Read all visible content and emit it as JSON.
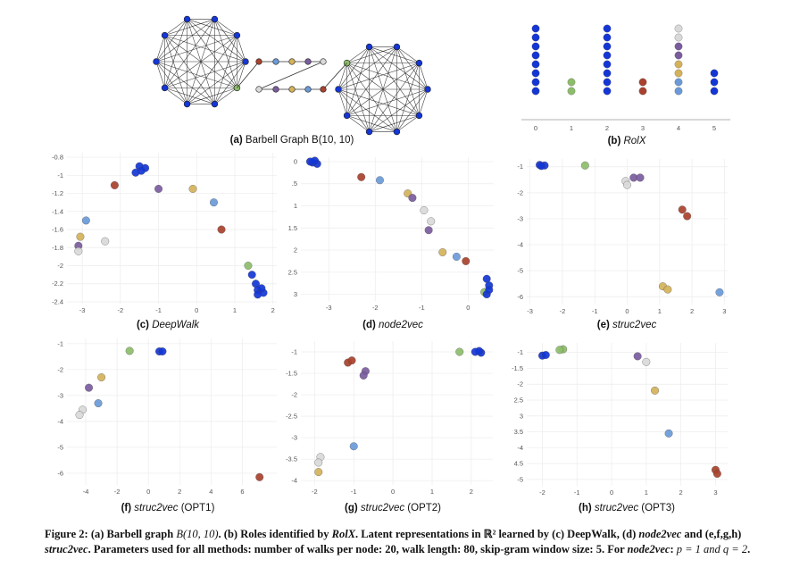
{
  "colors": {
    "blue": "#1436d6",
    "green": "#8dbd6a",
    "gray": "#d9d9d9",
    "purple": "#7a5c9e",
    "gold": "#d4b25a",
    "lightblue": "#6a9ad8",
    "red": "#a8412d"
  },
  "subcaptions": {
    "a": {
      "label": "(a)",
      "text": " Barbell Graph B(10, 10)"
    },
    "b": {
      "label": "(b)",
      "text": " RolX"
    },
    "c": {
      "label": "(c)",
      "text": " DeepWalk"
    },
    "d": {
      "label": "(d)",
      "text": " node2vec"
    },
    "e": {
      "label": "(e)",
      "text": " struc2vec"
    },
    "f": {
      "label": "(f)",
      "text": " struc2vec",
      "suffix": " (OPT1)"
    },
    "g": {
      "label": "(g)",
      "text": " struc2vec",
      "suffix": " (OPT2)"
    },
    "h": {
      "label": "(h)",
      "text": " struc2vec",
      "suffix": " (OPT3)"
    }
  },
  "caption": {
    "p1": "Figure 2: (a) Barbell graph ",
    "p2": "B(10, 10)",
    "p3": ". (b) Roles identified by ",
    "p4": "RolX",
    "p5": ". Latent representations in ℝ² learned by (c) DeepWalk, (d) ",
    "p6": "node2vec",
    "p7": " and (e,f,g,h) ",
    "p8": "struc2vec",
    "p9": ". Parameters used for all methods: number of walks per node: 20, walk length: 80, skip-gram window size: 5. For ",
    "p10": "node2vec",
    "p11": ": ",
    "p12": "p = 1 and q = 2",
    "p13": "."
  },
  "chart_data": [
    {
      "id": "b",
      "type": "scatter",
      "title": "RolX",
      "xticks": [
        "0",
        "1",
        "2",
        "3",
        "4",
        "5"
      ],
      "columns": [
        {
          "x": 0,
          "colors": [
            "blue",
            "blue",
            "blue",
            "blue",
            "blue",
            "blue",
            "blue",
            "blue"
          ]
        },
        {
          "x": 1,
          "colors": [
            "green",
            "green"
          ]
        },
        {
          "x": 2,
          "colors": [
            "blue",
            "blue",
            "blue",
            "blue",
            "blue",
            "blue",
            "blue",
            "blue"
          ]
        },
        {
          "x": 3,
          "colors": [
            "red",
            "red"
          ]
        },
        {
          "x": 4,
          "colors": [
            "lightblue",
            "lightblue",
            "gold",
            "gold",
            "purple",
            "purple",
            "gray",
            "gray"
          ]
        },
        {
          "x": 5,
          "colors": [
            "blue",
            "blue",
            "blue"
          ]
        }
      ]
    },
    {
      "id": "c",
      "type": "scatter",
      "title": "DeepWalk",
      "xlim": [
        -3.4,
        2.1
      ],
      "ylim": [
        -2.42,
        -0.75
      ],
      "xticks": [
        -3,
        -2,
        -1,
        0,
        1,
        2
      ],
      "yticks": [
        -0.8,
        -1,
        -1.2,
        -1.4,
        -1.6,
        -1.8,
        -2,
        -2.2,
        -2.4
      ],
      "ytick_labels": [
        "-0.8",
        "-1",
        "-1.2",
        "-1.4",
        "-1.6",
        "-1.8",
        "-2",
        "-2.2",
        "-2.4"
      ],
      "points": [
        [
          -1.5,
          -0.9,
          "blue"
        ],
        [
          -1.35,
          -0.92,
          "blue"
        ],
        [
          -1.6,
          -0.97,
          "blue"
        ],
        [
          -1.45,
          -0.95,
          "blue"
        ],
        [
          -2.15,
          -1.11,
          "red"
        ],
        [
          -1.0,
          -1.15,
          "purple"
        ],
        [
          -0.1,
          -1.15,
          "gold"
        ],
        [
          0.45,
          -1.3,
          "lightblue"
        ],
        [
          0.65,
          -1.6,
          "red"
        ],
        [
          -2.9,
          -1.5,
          "lightblue"
        ],
        [
          -2.4,
          -1.73,
          "gray"
        ],
        [
          -3.05,
          -1.68,
          "gold"
        ],
        [
          -3.1,
          -1.78,
          "purple"
        ],
        [
          -3.1,
          -1.84,
          "gray"
        ],
        [
          1.35,
          -2.0,
          "green"
        ],
        [
          1.45,
          -2.1,
          "blue"
        ],
        [
          1.55,
          -2.2,
          "blue"
        ],
        [
          1.6,
          -2.27,
          "blue"
        ],
        [
          1.75,
          -2.3,
          "blue"
        ],
        [
          1.6,
          -2.32,
          "blue"
        ],
        [
          1.7,
          -2.25,
          "blue"
        ]
      ]
    },
    {
      "id": "d",
      "type": "scatter",
      "title": "node2vec",
      "xlim": [
        -3.6,
        0.55
      ],
      "ylim": [
        -3.15,
        0.1
      ],
      "xticks": [
        -3,
        -2,
        -1,
        0
      ],
      "yticks": [
        0,
        -0.5,
        -1,
        -1.5,
        -2,
        -2.5,
        -3
      ],
      "ytick_labels": [
        "0",
        ".5",
        "1",
        "1.5",
        "2",
        "2.5",
        "3"
      ],
      "points": [
        [
          -3.35,
          -0.02,
          "blue"
        ],
        [
          -3.25,
          -0.05,
          "blue"
        ],
        [
          -3.4,
          0.0,
          "blue"
        ],
        [
          -3.3,
          0.02,
          "blue"
        ],
        [
          -2.3,
          -0.35,
          "red"
        ],
        [
          -1.9,
          -0.42,
          "lightblue"
        ],
        [
          -1.3,
          -0.72,
          "gold"
        ],
        [
          -1.2,
          -0.82,
          "purple"
        ],
        [
          -0.95,
          -1.1,
          "gray"
        ],
        [
          -0.8,
          -1.35,
          "gray"
        ],
        [
          -0.85,
          -1.55,
          "purple"
        ],
        [
          -0.55,
          -2.05,
          "gold"
        ],
        [
          -0.25,
          -2.15,
          "lightblue"
        ],
        [
          -0.05,
          -2.25,
          "red"
        ],
        [
          0.35,
          -2.95,
          "green"
        ],
        [
          0.4,
          -2.65,
          "blue"
        ],
        [
          0.45,
          -2.8,
          "blue"
        ],
        [
          0.4,
          -3.0,
          "blue"
        ],
        [
          0.45,
          -2.9,
          "blue"
        ]
      ]
    },
    {
      "id": "e",
      "type": "scatter",
      "title": "struc2vec",
      "xlim": [
        -3.1,
        3.1
      ],
      "ylim": [
        -6.3,
        -0.7
      ],
      "xticks": [
        -3,
        -2,
        -1,
        0,
        1,
        2,
        3
      ],
      "yticks": [
        -1,
        -2,
        -3,
        -4,
        -5,
        -6
      ],
      "ytick_labels": [
        "-1",
        "-2",
        "-3",
        "-4",
        "-5",
        "-6"
      ],
      "points": [
        [
          -2.7,
          -0.93,
          "blue"
        ],
        [
          -2.55,
          -0.95,
          "blue"
        ],
        [
          -2.65,
          -0.97,
          "blue"
        ],
        [
          -1.3,
          -0.95,
          "green"
        ],
        [
          0.2,
          -1.42,
          "purple"
        ],
        [
          0.4,
          -1.42,
          "purple"
        ],
        [
          -0.05,
          -1.55,
          "gray"
        ],
        [
          0.0,
          -1.7,
          "gray"
        ],
        [
          1.7,
          -2.65,
          "red"
        ],
        [
          1.85,
          -2.9,
          "red"
        ],
        [
          1.1,
          -5.6,
          "gold"
        ],
        [
          1.25,
          -5.72,
          "gold"
        ],
        [
          2.85,
          -5.83,
          "lightblue"
        ]
      ]
    },
    {
      "id": "f",
      "type": "scatter",
      "title": "struc2vec (OPT1)",
      "xlim": [
        -5.2,
        8.2
      ],
      "ylim": [
        -6.45,
        -0.8
      ],
      "xticks": [
        -4,
        -2,
        0,
        2,
        4,
        6
      ],
      "yticks": [
        -1,
        -2,
        -3,
        -4,
        -5,
        -6
      ],
      "ytick_labels": [
        "-1",
        "-2",
        "-3",
        "-4",
        "-5",
        "-6"
      ],
      "points": [
        [
          0.7,
          -1.3,
          "blue"
        ],
        [
          0.9,
          -1.3,
          "blue"
        ],
        [
          -1.2,
          -1.28,
          "green"
        ],
        [
          -3.0,
          -2.3,
          "gold"
        ],
        [
          -3.8,
          -2.7,
          "purple"
        ],
        [
          -3.2,
          -3.3,
          "lightblue"
        ],
        [
          -4.2,
          -3.55,
          "gray"
        ],
        [
          -4.4,
          -3.75,
          "gray"
        ],
        [
          7.1,
          -6.15,
          "red"
        ]
      ]
    },
    {
      "id": "g",
      "type": "scatter",
      "title": "struc2vec (OPT2)",
      "xlim": [
        -2.35,
        2.55
      ],
      "ylim": [
        -4.1,
        -0.75
      ],
      "xticks": [
        -2,
        -1,
        0,
        1,
        2
      ],
      "yticks": [
        -1,
        -1.5,
        -2,
        -2.5,
        -3,
        -3.5,
        -4
      ],
      "ytick_labels": [
        "-1",
        "-1.5",
        "-2",
        "-2.5",
        "-3",
        "-3.5",
        "-4"
      ],
      "points": [
        [
          2.1,
          -1.0,
          "blue"
        ],
        [
          2.25,
          -1.02,
          "blue"
        ],
        [
          2.2,
          -0.98,
          "blue"
        ],
        [
          1.7,
          -1.0,
          "green"
        ],
        [
          -1.15,
          -1.25,
          "red"
        ],
        [
          -1.05,
          -1.2,
          "red"
        ],
        [
          -0.7,
          -1.45,
          "purple"
        ],
        [
          -0.75,
          -1.55,
          "purple"
        ],
        [
          -1.0,
          -3.2,
          "lightblue"
        ],
        [
          -1.85,
          -3.45,
          "gray"
        ],
        [
          -1.9,
          -3.58,
          "gray"
        ],
        [
          -1.9,
          -3.8,
          "gold"
        ]
      ]
    },
    {
      "id": "h",
      "type": "scatter",
      "title": "struc2vec (OPT3)",
      "xlim": [
        -2.45,
        3.35
      ],
      "ylim": [
        -5.2,
        -0.7
      ],
      "xticks": [
        -2,
        -1,
        0,
        1,
        2,
        3
      ],
      "yticks": [
        -1,
        -1.5,
        -2,
        -2.5,
        -3,
        -3.5,
        -4,
        -4.5,
        -5
      ],
      "ytick_labels": [
        "-1",
        "-1.5",
        "-2",
        "2.5",
        "3",
        "3.5",
        "-4",
        "4.5",
        "-5"
      ],
      "points": [
        [
          -2.0,
          -1.1,
          "blue"
        ],
        [
          -1.9,
          -1.08,
          "blue"
        ],
        [
          -1.4,
          -0.9,
          "green"
        ],
        [
          -1.5,
          -0.92,
          "green"
        ],
        [
          0.75,
          -1.12,
          "purple"
        ],
        [
          1.0,
          -1.3,
          "gray"
        ],
        [
          1.25,
          -2.2,
          "gold"
        ],
        [
          1.65,
          -3.55,
          "lightblue"
        ],
        [
          3.0,
          -4.7,
          "red"
        ],
        [
          3.05,
          -4.82,
          "red"
        ]
      ]
    }
  ]
}
